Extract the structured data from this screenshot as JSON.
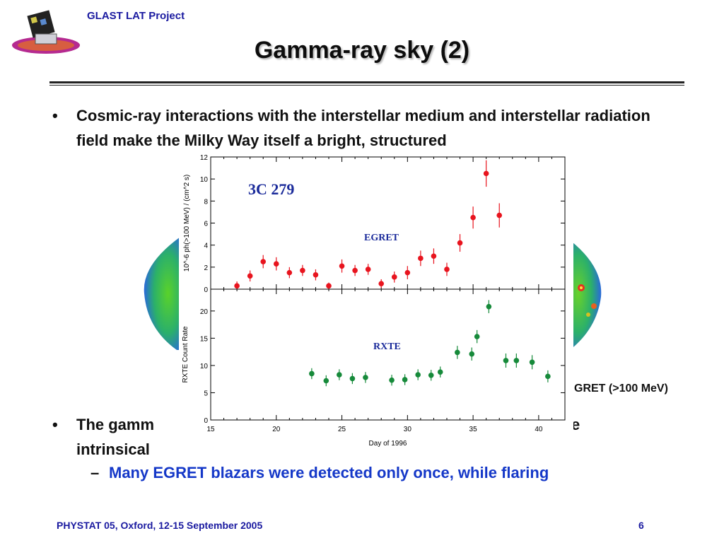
{
  "header": {
    "project": "GLAST LAT Project"
  },
  "title": "Gamma-ray sky (2)",
  "bullets": [
    {
      "text": "Cosmic-ray interactions with the interstellar medium and interstellar radiation field make the Milky Way itself a bright, structured"
    },
    {
      "text": "The gamm",
      "text_right": "e",
      "line2": "intrinsical"
    }
  ],
  "sub_bullet": "Many EGRET blazars were detected only once, while flaring",
  "egret_caption": "GRET (>100 MeV)",
  "footer": {
    "text": "PHYSTAT 05, Oxford, 12-15 September 2005",
    "page": "6"
  },
  "colors": {
    "title": "#0d0d0d",
    "header": "#1a1aa0",
    "sub_bullet": "#1538c8",
    "egret_points": "#e8141e",
    "rxte_points": "#168a3a"
  },
  "chart_data": [
    {
      "type": "scatter",
      "panel": "top",
      "title": "3C 279",
      "annotation": "EGRET",
      "ylabel": "10^-6 ph(>100 MeV) / (cm^2 s)",
      "ylim": [
        0,
        12
      ],
      "yticks": [
        0,
        2,
        4,
        6,
        8,
        10,
        12
      ],
      "xlim": [
        15,
        42
      ],
      "series": [
        {
          "x": [
            17,
            18,
            19,
            20,
            21,
            22,
            23,
            24,
            25,
            26,
            27,
            28,
            29,
            30,
            31,
            32,
            33,
            34,
            35,
            36,
            37
          ],
          "y": [
            0.3,
            1.2,
            2.5,
            2.3,
            1.5,
            1.7,
            1.3,
            0.3,
            2.1,
            1.7,
            1.8,
            0.5,
            1.1,
            1.5,
            2.8,
            3.0,
            1.8,
            4.2,
            6.5,
            10.5,
            6.7
          ],
          "err": [
            0.4,
            0.5,
            0.6,
            0.6,
            0.5,
            0.5,
            0.5,
            0.3,
            0.6,
            0.5,
            0.5,
            0.4,
            0.5,
            0.6,
            0.7,
            0.7,
            0.6,
            0.8,
            1.0,
            1.2,
            1.1
          ]
        }
      ]
    },
    {
      "type": "scatter",
      "panel": "bottom",
      "annotation": "RXTE",
      "ylabel": "RXTE Count Rate",
      "xlabel": "Day of 1996",
      "ylim": [
        0,
        24
      ],
      "yticks": [
        0,
        5,
        10,
        15,
        20
      ],
      "xlim": [
        15,
        42
      ],
      "xticks": [
        15,
        20,
        25,
        30,
        35,
        40
      ],
      "series": [
        {
          "x": [
            22.7,
            23.8,
            24.8,
            25.8,
            26.8,
            28.8,
            29.8,
            30.8,
            31.8,
            32.5,
            33.8,
            34.9,
            35.3,
            36.2,
            37.5,
            38.3,
            39.5,
            40.7
          ],
          "y": [
            8.5,
            7.2,
            8.3,
            7.6,
            7.8,
            7.3,
            7.4,
            8.3,
            8.2,
            8.8,
            12.4,
            12.1,
            15.3,
            20.8,
            10.9,
            10.9,
            10.6,
            8.0
          ],
          "err": [
            1.0,
            1.0,
            1.0,
            1.0,
            1.0,
            1.0,
            1.0,
            1.0,
            1.0,
            1.0,
            1.2,
            1.2,
            1.2,
            1.2,
            1.3,
            1.3,
            1.3,
            1.1
          ]
        }
      ]
    }
  ]
}
